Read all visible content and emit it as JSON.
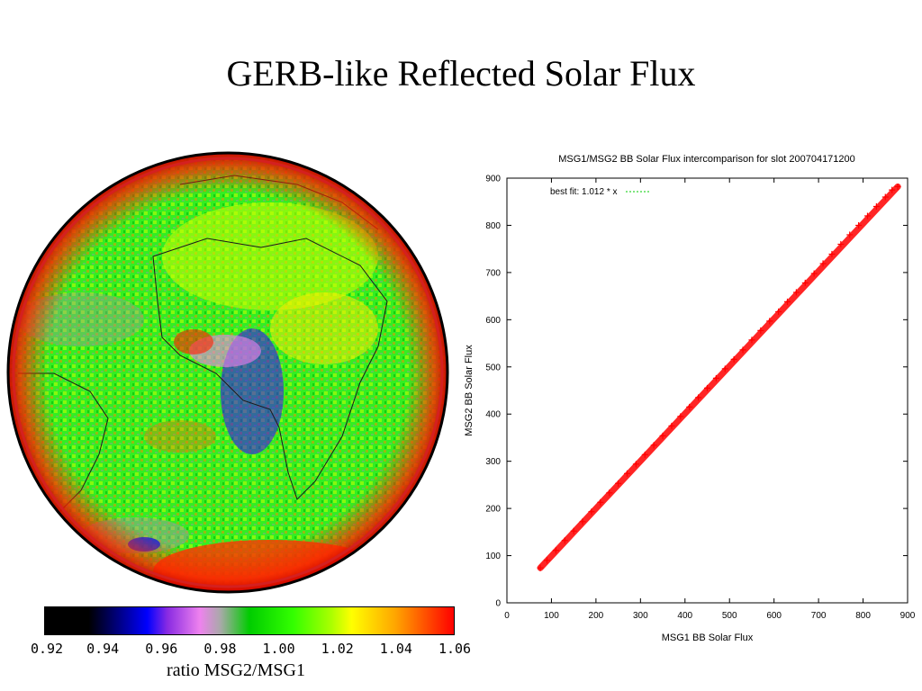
{
  "slide": {
    "title": "GERB-like Reflected Solar Flux"
  },
  "map_panel": {
    "colorbar": {
      "label": "ratio MSG2/MSG1",
      "ticks": [
        "0.92",
        "0.94",
        "0.96",
        "0.98",
        "1.00",
        "1.02",
        "1.04",
        "1.06"
      ],
      "stops": [
        {
          "value": 0.92,
          "color": "#000000"
        },
        {
          "value": 0.935,
          "color": "#000000"
        },
        {
          "value": 0.955,
          "color": "#0000ff"
        },
        {
          "value": 0.962,
          "color": "#8a2be2"
        },
        {
          "value": 0.973,
          "color": "#ee82ee"
        },
        {
          "value": 0.98,
          "color": "#a9a9a9"
        },
        {
          "value": 0.99,
          "color": "#00cc00"
        },
        {
          "value": 1.005,
          "color": "#33ff00"
        },
        {
          "value": 1.018,
          "color": "#aaff00"
        },
        {
          "value": 1.025,
          "color": "#ffff00"
        },
        {
          "value": 1.04,
          "color": "#ffa500"
        },
        {
          "value": 1.06,
          "color": "#ff0000"
        }
      ]
    },
    "map_colors": {
      "background": "#33ee22",
      "ring": "#d42020",
      "edge": "#ff2200",
      "outline": "#1a1a1a"
    }
  },
  "chart_data": {
    "type": "scatter",
    "title": "MSG1/MSG2 BB Solar Flux intercomparison for slot 200704171200",
    "xlabel": "MSG1 BB Solar Flux",
    "ylabel": "MSG2 BB Solar Flux",
    "xlim": [
      0,
      900
    ],
    "ylim": [
      0,
      900
    ],
    "xticks": [
      0,
      100,
      200,
      300,
      400,
      500,
      600,
      700,
      800,
      900
    ],
    "yticks": [
      0,
      100,
      200,
      300,
      400,
      500,
      600,
      700,
      800,
      900
    ],
    "legend": {
      "label": "best fit:  1.012 * x",
      "position": "top-left"
    },
    "fit": {
      "slope": 1.012
    },
    "series": [
      {
        "color": "#ff0000",
        "marker": "+",
        "x": [
          75,
          90,
          110,
          130,
          150,
          170,
          190,
          210,
          230,
          250,
          270,
          290,
          310,
          330,
          350,
          370,
          390,
          410,
          430,
          450,
          470,
          490,
          510,
          530,
          550,
          570,
          590,
          610,
          630,
          650,
          670,
          690,
          710,
          730,
          750,
          770,
          790,
          810,
          830,
          850,
          865,
          878
        ],
        "y": [
          74,
          90,
          111,
          132,
          152,
          172,
          193,
          213,
          233,
          253,
          274,
          294,
          314,
          334,
          354,
          375,
          395,
          415,
          435,
          455,
          476,
          496,
          516,
          536,
          557,
          577,
          597,
          617,
          638,
          658,
          678,
          698,
          719,
          739,
          760,
          780,
          800,
          820,
          840,
          860,
          875,
          882
        ]
      }
    ],
    "grid": false
  }
}
